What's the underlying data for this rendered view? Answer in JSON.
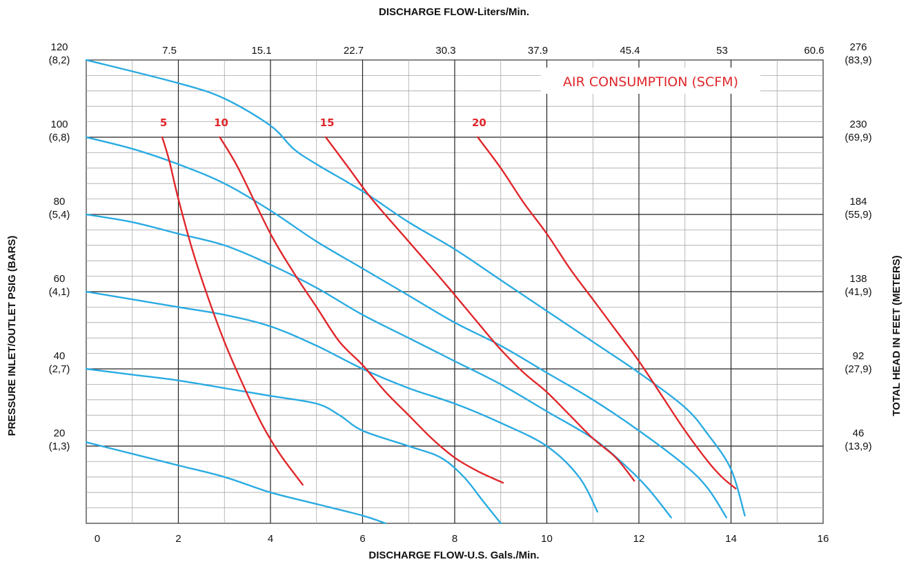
{
  "chart_data": {
    "type": "line",
    "title_top": "DISCHARGE FLOW-Liters/Min.",
    "xlabel": "DISCHARGE FLOW-U.S. Gals./Min.",
    "ylabel_left": "PRESSURE INLET/OUTLET PSIG (BARS)",
    "ylabel_right": "TOTAL HEAD IN FEET (METERS)",
    "annotation": "AIR CONSUMPTION (SCFM)",
    "xlim": [
      0,
      16
    ],
    "ylim": [
      0,
      120
    ],
    "grid": true,
    "x_ticks": [
      "0",
      "2",
      "4",
      "6",
      "8",
      "10",
      "12",
      "14",
      "16"
    ],
    "x_top_ticks": [
      {
        "x": 2,
        "label": "7.5"
      },
      {
        "x": 4,
        "label": "15.1"
      },
      {
        "x": 6,
        "label": "22.7"
      },
      {
        "x": 8,
        "label": "30.3"
      },
      {
        "x": 10,
        "label": "37.9"
      },
      {
        "x": 12,
        "label": "45.4"
      },
      {
        "x": 14,
        "label": "53"
      },
      {
        "x": 16,
        "label": "60.6"
      }
    ],
    "y_left_ticks": [
      {
        "y": 120,
        "value": "120",
        "bar": "(8,2)"
      },
      {
        "y": 100,
        "value": "100",
        "bar": "(6,8)"
      },
      {
        "y": 80,
        "value": "80",
        "bar": "(5,4)"
      },
      {
        "y": 60,
        "value": "60",
        "bar": "(4,1)"
      },
      {
        "y": 40,
        "value": "40",
        "bar": "(2,7)"
      },
      {
        "y": 20,
        "value": "20",
        "bar": "(1,3)"
      }
    ],
    "y_right_ticks": [
      {
        "y": 120,
        "value": "276",
        "meters": "(83,9)"
      },
      {
        "y": 100,
        "value": "230",
        "meters": "(69,9)"
      },
      {
        "y": 80,
        "value": "184",
        "meters": "(55,9)"
      },
      {
        "y": 60,
        "value": "138",
        "meters": "(41,9)"
      },
      {
        "y": 40,
        "value": "92",
        "meters": "(27,9)"
      },
      {
        "y": 20,
        "value": "46",
        "meters": "(13,9)"
      }
    ],
    "pressure_curves": [
      {
        "pressure": 120,
        "color": "#29abe2",
        "points": [
          [
            0,
            120
          ],
          [
            2,
            114
          ],
          [
            3,
            110
          ],
          [
            4,
            103
          ],
          [
            4.5,
            97
          ],
          [
            5,
            93
          ],
          [
            6,
            86
          ],
          [
            7,
            78
          ],
          [
            8,
            71
          ],
          [
            9,
            63
          ],
          [
            10,
            55
          ],
          [
            11,
            47
          ],
          [
            12,
            39
          ],
          [
            13,
            30
          ],
          [
            13.5,
            23
          ],
          [
            14,
            14
          ],
          [
            14.3,
            2
          ]
        ]
      },
      {
        "pressure": 100,
        "color": "#29abe2",
        "points": [
          [
            0,
            100
          ],
          [
            1,
            97
          ],
          [
            2,
            93
          ],
          [
            3,
            88
          ],
          [
            4,
            81
          ],
          [
            5,
            73
          ],
          [
            6,
            66
          ],
          [
            7,
            59
          ],
          [
            8,
            52
          ],
          [
            9,
            46
          ],
          [
            10,
            39
          ],
          [
            11,
            32
          ],
          [
            12,
            24
          ],
          [
            13,
            15
          ],
          [
            13.5,
            9
          ],
          [
            13.9,
            1.5
          ]
        ]
      },
      {
        "pressure": 80,
        "color": "#29abe2",
        "points": [
          [
            0,
            80
          ],
          [
            1,
            78
          ],
          [
            2,
            75
          ],
          [
            3,
            72
          ],
          [
            4,
            67
          ],
          [
            5,
            61
          ],
          [
            6,
            54
          ],
          [
            7,
            48
          ],
          [
            8,
            42
          ],
          [
            9,
            36
          ],
          [
            10,
            29
          ],
          [
            11,
            22
          ],
          [
            11.7,
            15
          ],
          [
            12.2,
            9
          ],
          [
            12.7,
            1.5
          ]
        ]
      },
      {
        "pressure": 60,
        "color": "#29abe2",
        "points": [
          [
            0,
            60
          ],
          [
            1,
            58
          ],
          [
            2,
            56
          ],
          [
            3,
            54
          ],
          [
            4,
            51
          ],
          [
            5,
            46
          ],
          [
            6,
            40
          ],
          [
            7,
            35
          ],
          [
            8,
            31
          ],
          [
            9,
            26
          ],
          [
            10,
            20
          ],
          [
            10.7,
            12
          ],
          [
            11.1,
            3
          ]
        ]
      },
      {
        "pressure": 40,
        "color": "#29abe2",
        "points": [
          [
            0,
            40
          ],
          [
            1,
            38.5
          ],
          [
            2,
            37
          ],
          [
            3,
            35
          ],
          [
            4,
            33
          ],
          [
            5,
            31
          ],
          [
            5.5,
            28
          ],
          [
            6,
            24
          ],
          [
            7,
            20
          ],
          [
            7.7,
            17
          ],
          [
            8.2,
            12
          ],
          [
            8.6,
            6
          ],
          [
            9,
            0
          ]
        ]
      },
      {
        "pressure": 20,
        "color": "#29abe2",
        "points": [
          [
            0,
            21
          ],
          [
            1,
            18
          ],
          [
            2,
            15
          ],
          [
            3,
            12
          ],
          [
            4,
            8
          ],
          [
            5,
            5
          ],
          [
            6,
            2
          ],
          [
            6.5,
            0
          ]
        ]
      }
    ],
    "air_curves": [
      {
        "label": "5",
        "scfm": 5,
        "color": "#e0262a",
        "points": [
          [
            1.65,
            100
          ],
          [
            1.8,
            94
          ],
          [
            2,
            84
          ],
          [
            2.3,
            71
          ],
          [
            2.6,
            60
          ],
          [
            3,
            47
          ],
          [
            3.4,
            36
          ],
          [
            3.8,
            26
          ],
          [
            4.2,
            18
          ],
          [
            4.7,
            10
          ]
        ]
      },
      {
        "label": "10",
        "scfm": 10,
        "color": "#e0262a",
        "points": [
          [
            2.9,
            100
          ],
          [
            3.3,
            92
          ],
          [
            4,
            75
          ],
          [
            4.5,
            65
          ],
          [
            5,
            56
          ],
          [
            5.5,
            47
          ],
          [
            6,
            41
          ],
          [
            6.5,
            34
          ],
          [
            7,
            28
          ],
          [
            7.5,
            22
          ],
          [
            8,
            17
          ],
          [
            8.5,
            13.5
          ],
          [
            9.05,
            10.5
          ]
        ]
      },
      {
        "label": "15",
        "scfm": 15,
        "color": "#e0262a",
        "points": [
          [
            5.2,
            100
          ],
          [
            5.7,
            92
          ],
          [
            6.2,
            84
          ],
          [
            7,
            73
          ],
          [
            7.8,
            62
          ],
          [
            8.5,
            52
          ],
          [
            9,
            45
          ],
          [
            9.5,
            39
          ],
          [
            10,
            34
          ],
          [
            10.5,
            28
          ],
          [
            11,
            22
          ],
          [
            11.5,
            17
          ],
          [
            11.9,
            11
          ]
        ]
      },
      {
        "label": "20",
        "scfm": 20,
        "color": "#e0262a",
        "points": [
          [
            8.5,
            100
          ],
          [
            9,
            92
          ],
          [
            9.5,
            83
          ],
          [
            10,
            75
          ],
          [
            10.5,
            66
          ],
          [
            11,
            58
          ],
          [
            11.5,
            50
          ],
          [
            12,
            42
          ],
          [
            12.5,
            33
          ],
          [
            13,
            24
          ],
          [
            13.5,
            16
          ],
          [
            13.8,
            12
          ],
          [
            14.1,
            9
          ]
        ]
      }
    ]
  }
}
